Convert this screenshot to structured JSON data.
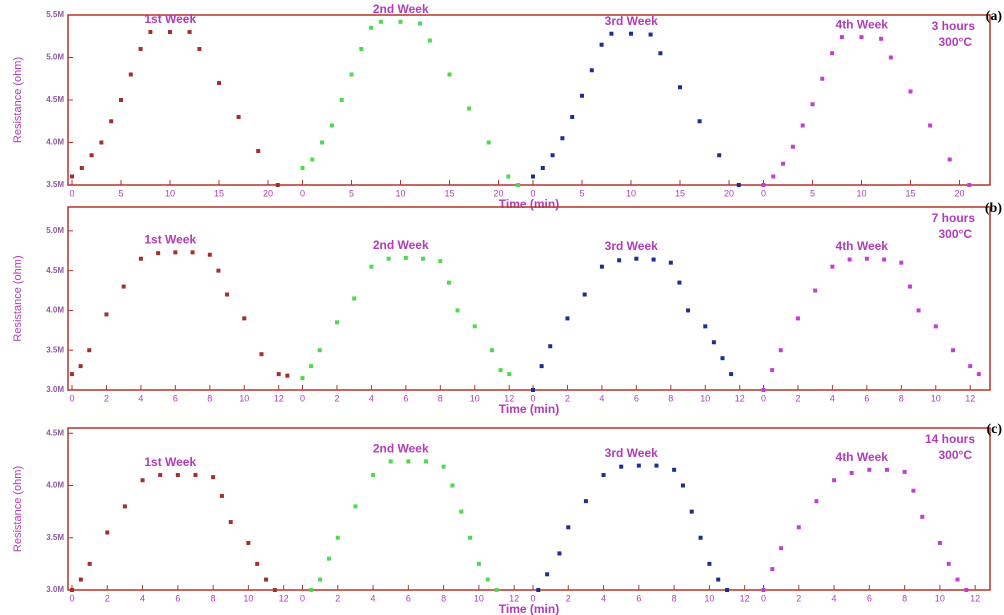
{
  "chart_data": [
    {
      "type": "scatter",
      "panel_label": "(a)",
      "duration": "3 hours",
      "temperature": "300°C",
      "y_label": "Resistance (ohm)",
      "x_label": "Time (min)",
      "ylim": [
        3500000,
        5500000
      ],
      "yticks": [
        {
          "value": 3500000,
          "label": "3.5M"
        },
        {
          "value": 4000000,
          "label": "4.0M"
        },
        {
          "value": 4500000,
          "label": "4.5M"
        },
        {
          "value": 5000000,
          "label": "5.0M"
        },
        {
          "value": 5500000,
          "label": "5.5M"
        }
      ],
      "xlim": [
        0,
        22.5
      ],
      "xticks": [
        0,
        5,
        10,
        15,
        20
      ],
      "series": [
        {
          "name": "1st Week",
          "color": "#a3302a",
          "x": [
            0,
            1,
            2,
            3,
            4,
            5,
            6,
            7,
            8,
            10,
            12,
            13,
            15,
            17,
            19,
            21
          ],
          "values": [
            3600000,
            3700000,
            3850000,
            4000000,
            4250000,
            4500000,
            4800000,
            5100000,
            5300000,
            5300000,
            5300000,
            5100000,
            4700000,
            4300000,
            3900000,
            3500000
          ]
        },
        {
          "name": "2nd Week",
          "color": "#4ed94e",
          "x": [
            0,
            1,
            2,
            3,
            4,
            5,
            6,
            7,
            8,
            10,
            12,
            13,
            15,
            17,
            19,
            21,
            22
          ],
          "values": [
            3700000,
            3800000,
            4000000,
            4200000,
            4500000,
            4800000,
            5100000,
            5350000,
            5420000,
            5420000,
            5400000,
            5200000,
            4800000,
            4400000,
            4000000,
            3600000,
            3500000
          ]
        },
        {
          "name": "3rd Week",
          "color": "#1c2f90",
          "x": [
            0,
            1,
            2,
            3,
            4,
            5,
            6,
            7,
            8,
            10,
            12,
            13,
            15,
            17,
            19,
            21
          ],
          "values": [
            3600000,
            3700000,
            3850000,
            4050000,
            4300000,
            4550000,
            4850000,
            5150000,
            5280000,
            5280000,
            5270000,
            5050000,
            4650000,
            4250000,
            3850000,
            3500000
          ]
        },
        {
          "name": "4th Week",
          "color": "#c23fd3",
          "x": [
            0,
            1,
            2,
            3,
            4,
            5,
            6,
            7,
            8,
            10,
            12,
            13,
            15,
            17,
            19,
            21
          ],
          "values": [
            3500000,
            3600000,
            3750000,
            3950000,
            4200000,
            4450000,
            4750000,
            5050000,
            5240000,
            5240000,
            5220000,
            5000000,
            4600000,
            4200000,
            3800000,
            3500000
          ]
        }
      ]
    },
    {
      "type": "scatter",
      "panel_label": "(b)",
      "duration": "7 hours",
      "temperature": "300°C",
      "y_label": "Resistance (ohm)",
      "x_label": "Time (min)",
      "ylim": [
        3000000,
        5300000
      ],
      "yticks": [
        {
          "value": 3000000,
          "label": "3.0M"
        },
        {
          "value": 3500000,
          "label": "3.5M"
        },
        {
          "value": 4000000,
          "label": "4.0M"
        },
        {
          "value": 4500000,
          "label": "4.5M"
        },
        {
          "value": 5000000,
          "label": "5.0M"
        }
      ],
      "xlim": [
        0,
        12.8
      ],
      "xticks": [
        0,
        2,
        4,
        6,
        8,
        10,
        12
      ],
      "series": [
        {
          "name": "1st Week",
          "color": "#a3302a",
          "x": [
            0,
            0.5,
            1,
            2,
            3,
            4,
            5,
            6,
            7,
            8,
            8.5,
            9,
            10,
            11,
            12,
            12.5
          ],
          "values": [
            3200000,
            3300000,
            3500000,
            3950000,
            4300000,
            4650000,
            4720000,
            4730000,
            4730000,
            4700000,
            4500000,
            4200000,
            3900000,
            3450000,
            3200000,
            3180000
          ]
        },
        {
          "name": "2nd Week",
          "color": "#4ed94e",
          "x": [
            0,
            0.5,
            1,
            2,
            3,
            4,
            5,
            6,
            7,
            8,
            8.5,
            9,
            10,
            11,
            11.5,
            12
          ],
          "values": [
            3150000,
            3300000,
            3500000,
            3850000,
            4150000,
            4550000,
            4650000,
            4660000,
            4650000,
            4620000,
            4350000,
            4000000,
            3800000,
            3500000,
            3250000,
            3200000
          ]
        },
        {
          "name": "3rd Week",
          "color": "#1c2f90",
          "x": [
            0,
            0.5,
            1,
            2,
            3,
            4,
            5,
            6,
            7,
            8,
            8.5,
            9,
            10,
            10.5,
            11,
            11.5
          ],
          "values": [
            3000000,
            3300000,
            3550000,
            3900000,
            4200000,
            4550000,
            4630000,
            4650000,
            4640000,
            4600000,
            4350000,
            4000000,
            3800000,
            3600000,
            3400000,
            3200000
          ]
        },
        {
          "name": "4th Week",
          "color": "#c23fd3",
          "x": [
            0,
            0.5,
            1,
            2,
            3,
            4,
            5,
            6,
            7,
            8,
            8.5,
            9,
            10,
            11,
            12,
            12.5
          ],
          "values": [
            3000000,
            3250000,
            3500000,
            3900000,
            4250000,
            4550000,
            4640000,
            4650000,
            4640000,
            4600000,
            4300000,
            4000000,
            3800000,
            3500000,
            3300000,
            3200000
          ]
        }
      ]
    },
    {
      "type": "scatter",
      "panel_label": "(c)",
      "duration": "14 hours",
      "temperature": "300°C",
      "y_label": "Resistance (ohm)",
      "x_label": "Time (min)",
      "ylim": [
        3000000,
        4550000
      ],
      "yticks": [
        {
          "value": 3000000,
          "label": "3.0M"
        },
        {
          "value": 3500000,
          "label": "3.5M"
        },
        {
          "value": 4000000,
          "label": "4.0M"
        },
        {
          "value": 4500000,
          "label": "4.5M"
        }
      ],
      "xlim": [
        0,
        12.5
      ],
      "xticks": [
        0,
        2,
        4,
        6,
        8,
        10,
        12
      ],
      "series": [
        {
          "name": "1st Week",
          "color": "#a3302a",
          "x": [
            0,
            0.5,
            1,
            2,
            3,
            4,
            5,
            6,
            7,
            8,
            8.5,
            9,
            10,
            10.5,
            11,
            11.5
          ],
          "values": [
            3000000,
            3100000,
            3250000,
            3550000,
            3800000,
            4050000,
            4100000,
            4100000,
            4100000,
            4080000,
            3900000,
            3650000,
            3450000,
            3250000,
            3100000,
            3000000
          ]
        },
        {
          "name": "2nd Week",
          "color": "#4ed94e",
          "x": [
            0.5,
            1,
            1.5,
            2,
            3,
            4,
            5,
            6,
            7,
            8,
            8.5,
            9,
            9.5,
            10,
            10.5,
            11
          ],
          "values": [
            3000000,
            3100000,
            3300000,
            3500000,
            3800000,
            4100000,
            4230000,
            4230000,
            4230000,
            4180000,
            4000000,
            3750000,
            3500000,
            3250000,
            3100000,
            3000000
          ]
        },
        {
          "name": "3rd Week",
          "color": "#1c2f90",
          "x": [
            0.3,
            0.8,
            1.5,
            2,
            3,
            4,
            5,
            6,
            7,
            8,
            8.5,
            9,
            9.5,
            10,
            10.5,
            11
          ],
          "values": [
            3000000,
            3150000,
            3350000,
            3600000,
            3850000,
            4100000,
            4180000,
            4190000,
            4190000,
            4150000,
            4000000,
            3750000,
            3500000,
            3250000,
            3100000,
            3000000
          ]
        },
        {
          "name": "4th Week",
          "color": "#c23fd3",
          "x": [
            0,
            0.5,
            1,
            2,
            3,
            4,
            5,
            6,
            7,
            8,
            8.5,
            9,
            10,
            10.5,
            11,
            11.5
          ],
          "values": [
            3000000,
            3200000,
            3400000,
            3600000,
            3850000,
            4050000,
            4120000,
            4150000,
            4150000,
            4130000,
            3950000,
            3700000,
            3450000,
            3250000,
            3100000,
            3000000
          ]
        }
      ]
    }
  ]
}
